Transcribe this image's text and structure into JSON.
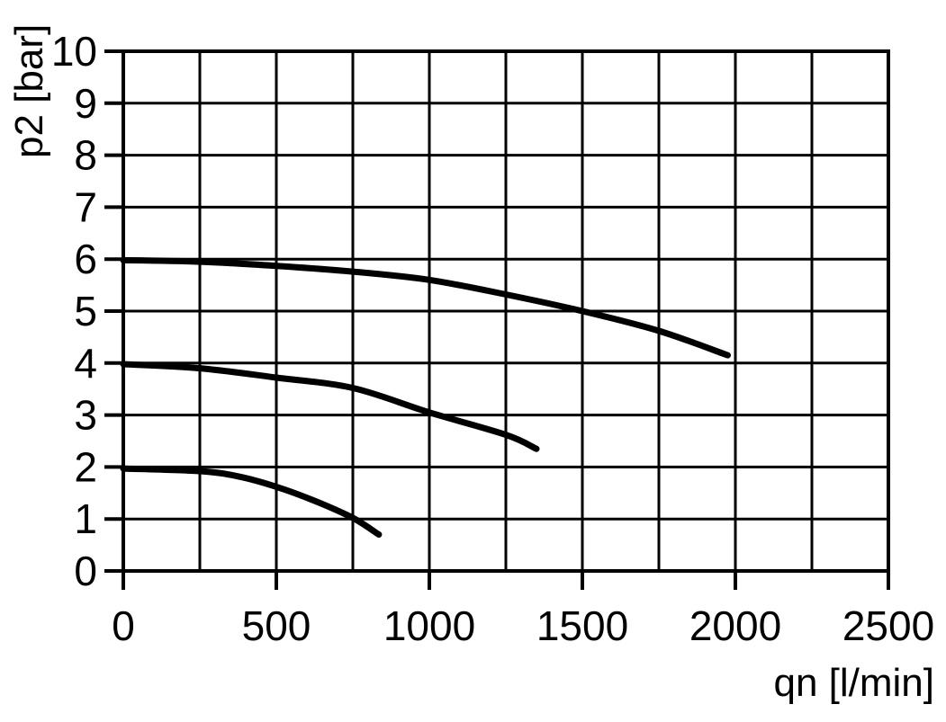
{
  "chart_data": {
    "type": "line",
    "title": "",
    "xlabel": "qn [l/min]",
    "ylabel": "p2 [bar]",
    "xlim": [
      0,
      2500
    ],
    "ylim": [
      0,
      10
    ],
    "x_ticks": [
      0,
      500,
      1000,
      1500,
      2000,
      2500
    ],
    "x_tick_labels": [
      "0",
      "500",
      "1000",
      "1500",
      "2000",
      "2500"
    ],
    "x_grid_step": 250,
    "y_ticks": [
      0,
      1,
      2,
      3,
      4,
      5,
      6,
      7,
      8,
      9,
      10
    ],
    "y_tick_labels": [
      "0",
      "1",
      "2",
      "3",
      "4",
      "5",
      "6",
      "7",
      "8",
      "9",
      "10"
    ],
    "y_grid_step": 1,
    "grid": "on",
    "legend": "none",
    "background_color": "#ffffff",
    "line_color": "#000000",
    "series": [
      {
        "id": "curve-p2-6bar",
        "points": [
          [
            0,
            5.98
          ],
          [
            250,
            5.95
          ],
          [
            500,
            5.87
          ],
          [
            750,
            5.76
          ],
          [
            1000,
            5.6
          ],
          [
            1250,
            5.32
          ],
          [
            1500,
            5.0
          ],
          [
            1750,
            4.62
          ],
          [
            1975,
            4.15
          ]
        ]
      },
      {
        "id": "curve-p2-4bar",
        "points": [
          [
            0,
            3.98
          ],
          [
            250,
            3.9
          ],
          [
            500,
            3.72
          ],
          [
            750,
            3.52
          ],
          [
            1000,
            3.05
          ],
          [
            1250,
            2.62
          ],
          [
            1350,
            2.35
          ]
        ]
      },
      {
        "id": "curve-p2-2bar",
        "points": [
          [
            0,
            1.97
          ],
          [
            250,
            1.92
          ],
          [
            375,
            1.82
          ],
          [
            500,
            1.62
          ],
          [
            625,
            1.35
          ],
          [
            750,
            1.02
          ],
          [
            835,
            0.7
          ]
        ]
      }
    ]
  }
}
